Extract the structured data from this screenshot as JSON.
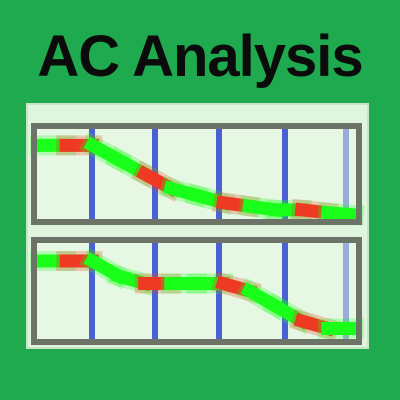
{
  "title": "AC Analysis",
  "colors": {
    "background": "#1faa50",
    "panel_fill": "#e6f8e4",
    "panel_border": "#6c7468",
    "gridline": "#3a4fd0",
    "trace_green": "#19ff19",
    "trace_red": "#ee3a22"
  },
  "chart_data": [
    {
      "type": "line",
      "x": [
        0,
        1,
        2,
        3,
        4,
        5,
        6,
        7,
        8,
        9,
        10,
        11,
        12
      ],
      "values": [
        10,
        10,
        10,
        8,
        6,
        4,
        3,
        2,
        1.5,
        1,
        1,
        0.6,
        0.3
      ],
      "ylim": [
        0,
        12
      ],
      "grid": true
    },
    {
      "type": "line",
      "x": [
        0,
        1,
        2,
        3,
        4,
        5,
        6,
        7,
        8,
        9,
        10,
        11,
        12
      ],
      "values": [
        10,
        10,
        10,
        8,
        7,
        7,
        7,
        7,
        6,
        4,
        2,
        1,
        1
      ],
      "ylim": [
        0,
        12
      ],
      "grid": true
    }
  ]
}
